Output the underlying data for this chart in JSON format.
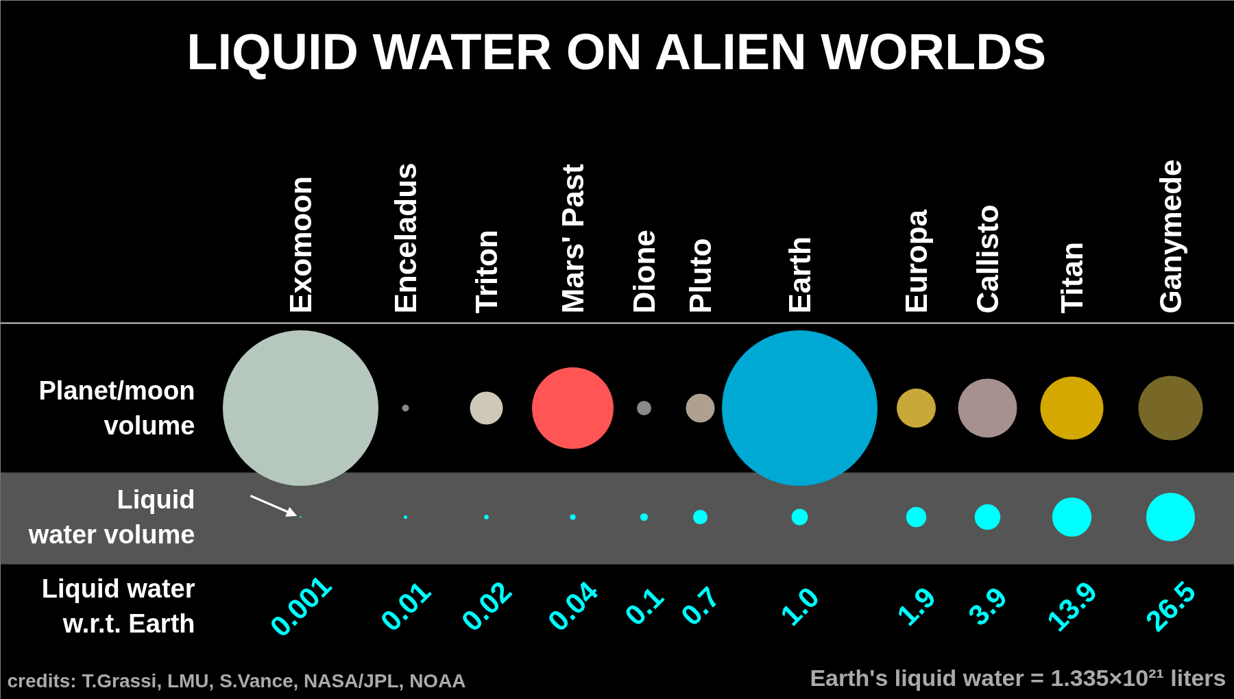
{
  "chart_data": {
    "type": "other",
    "title": "LIQUID WATER ON ALIEN WORLDS",
    "categories": [
      "Exomoon",
      "Enceladus",
      "Triton",
      "Mars' Past",
      "Dione",
      "Pluto",
      "Earth",
      "Europa",
      "Callisto",
      "Titan",
      "Ganymede"
    ],
    "series": [
      {
        "type": "bubble",
        "color": "#00ffff",
        "values": [
          0.001,
          0.01,
          0.02,
          0.04,
          0.1,
          0.7,
          1.0,
          1.9,
          3.9,
          13.9,
          26.5
        ],
        "value_labels": [
          "0.001",
          "0.01",
          "0.02",
          "0.04",
          "0.1",
          "0.7",
          "1.0",
          "1.9",
          "3.9",
          "13.9",
          "26.5"
        ]
      }
    ],
    "annotations": [
      "Planet/moon volume",
      "Liquid water volume",
      "Liquid water w.r.t. Earth",
      "Earth's liquid water = 1.335×10²¹ liters",
      "credits: T.Grassi, LMU, S.Vance, NASA/JPL, NOAA"
    ]
  }
}
